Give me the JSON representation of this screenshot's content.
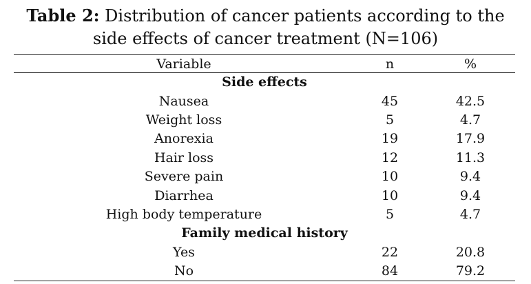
{
  "caption": {
    "label": "Table 2:",
    "line1": "Distribution of cancer patients according to the",
    "line2": "side effects of cancer treatment (N=106)"
  },
  "table": {
    "headers": [
      "Variable",
      "n",
      "%"
    ],
    "sections": [
      {
        "title": "Side effects",
        "rows": [
          {
            "variable": "Nausea",
            "n": "45",
            "pct": "42.5"
          },
          {
            "variable": "Weight loss",
            "n": "5",
            "pct": "4.7"
          },
          {
            "variable": "Anorexia",
            "n": "19",
            "pct": "17.9"
          },
          {
            "variable": "Hair loss",
            "n": "12",
            "pct": "11.3"
          },
          {
            "variable": "Severe pain",
            "n": "10",
            "pct": "9.4"
          },
          {
            "variable": "Diarrhea",
            "n": "10",
            "pct": "9.4"
          },
          {
            "variable": "High body temperature",
            "n": "5",
            "pct": "4.7"
          }
        ]
      },
      {
        "title": "Family medical history",
        "rows": [
          {
            "variable": "Yes",
            "n": "22",
            "pct": "20.8"
          },
          {
            "variable": "No",
            "n": "84",
            "pct": "79.2"
          }
        ]
      }
    ]
  }
}
